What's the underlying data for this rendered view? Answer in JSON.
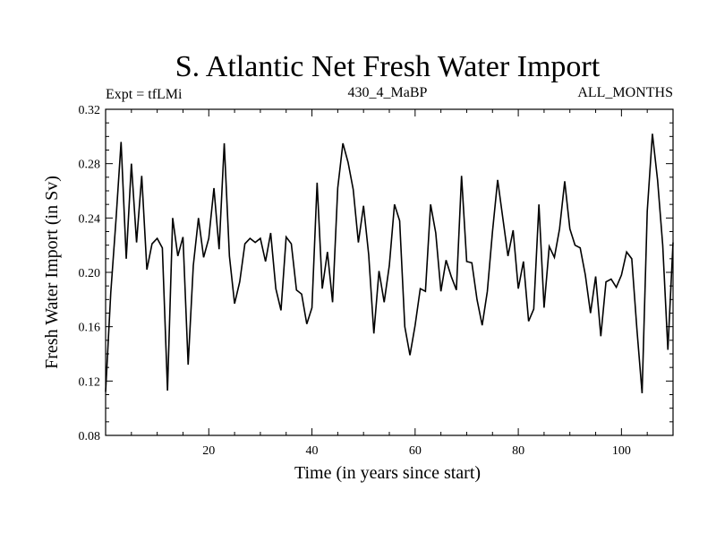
{
  "chart_data": {
    "type": "line",
    "title": "S. Atlantic Net Fresh Water Import",
    "subtitle_left": "Expt = tfLMi",
    "subtitle_center": "430_4_MaBP",
    "subtitle_right": "ALL_MONTHS",
    "xlabel": "Time (in years since start)",
    "ylabel": "Fresh Water Import (in Sv)",
    "xlim": [
      0,
      110
    ],
    "ylim": [
      0.08,
      0.32
    ],
    "xticks": [
      20,
      40,
      60,
      80,
      100
    ],
    "yticks": [
      0.08,
      0.12,
      0.16,
      0.2,
      0.24,
      0.28,
      0.32
    ],
    "ytick_labels": [
      "0.08",
      "0.12",
      "0.16",
      "0.20",
      "0.24",
      "0.28",
      "0.32"
    ],
    "grid": false,
    "series": [
      {
        "name": "Fresh Water Import",
        "color": "#000000",
        "x": [
          0,
          1,
          2,
          3,
          4,
          5,
          6,
          7,
          8,
          9,
          10,
          11,
          12,
          13,
          14,
          15,
          16,
          17,
          18,
          19,
          20,
          21,
          22,
          23,
          24,
          25,
          26,
          27,
          28,
          29,
          30,
          31,
          32,
          33,
          34,
          35,
          36,
          37,
          38,
          39,
          40,
          41,
          42,
          43,
          44,
          45,
          46,
          47,
          48,
          49,
          50,
          51,
          52,
          53,
          54,
          55,
          56,
          57,
          58,
          59,
          60,
          61,
          62,
          63,
          64,
          65,
          66,
          67,
          68,
          69,
          70,
          71,
          72,
          73,
          74,
          75,
          76,
          77,
          78,
          79,
          80,
          81,
          82,
          83,
          84,
          85,
          86,
          87,
          88,
          89,
          90,
          91,
          92,
          93,
          94,
          95,
          96,
          97,
          98,
          99,
          100,
          101,
          102,
          103,
          104,
          105,
          106,
          107,
          108,
          109,
          110
        ],
        "values": [
          0.112,
          0.185,
          0.238,
          0.296,
          0.21,
          0.28,
          0.222,
          0.271,
          0.202,
          0.221,
          0.225,
          0.218,
          0.113,
          0.24,
          0.212,
          0.226,
          0.132,
          0.205,
          0.24,
          0.211,
          0.225,
          0.262,
          0.217,
          0.295,
          0.212,
          0.177,
          0.193,
          0.221,
          0.225,
          0.222,
          0.225,
          0.208,
          0.229,
          0.188,
          0.172,
          0.226,
          0.221,
          0.187,
          0.184,
          0.162,
          0.174,
          0.266,
          0.188,
          0.215,
          0.178,
          0.262,
          0.295,
          0.281,
          0.261,
          0.222,
          0.249,
          0.213,
          0.155,
          0.201,
          0.178,
          0.205,
          0.25,
          0.238,
          0.16,
          0.139,
          0.161,
          0.188,
          0.186,
          0.25,
          0.229,
          0.186,
          0.209,
          0.197,
          0.187,
          0.271,
          0.208,
          0.207,
          0.18,
          0.161,
          0.186,
          0.23,
          0.268,
          0.24,
          0.212,
          0.231,
          0.188,
          0.208,
          0.164,
          0.173,
          0.25,
          0.174,
          0.219,
          0.211,
          0.232,
          0.267,
          0.232,
          0.22,
          0.218,
          0.198,
          0.17,
          0.197,
          0.153,
          0.193,
          0.195,
          0.189,
          0.198,
          0.215,
          0.21,
          0.158,
          0.111,
          0.245,
          0.302,
          0.268,
          0.22,
          0.143,
          0.222
        ]
      }
    ]
  }
}
